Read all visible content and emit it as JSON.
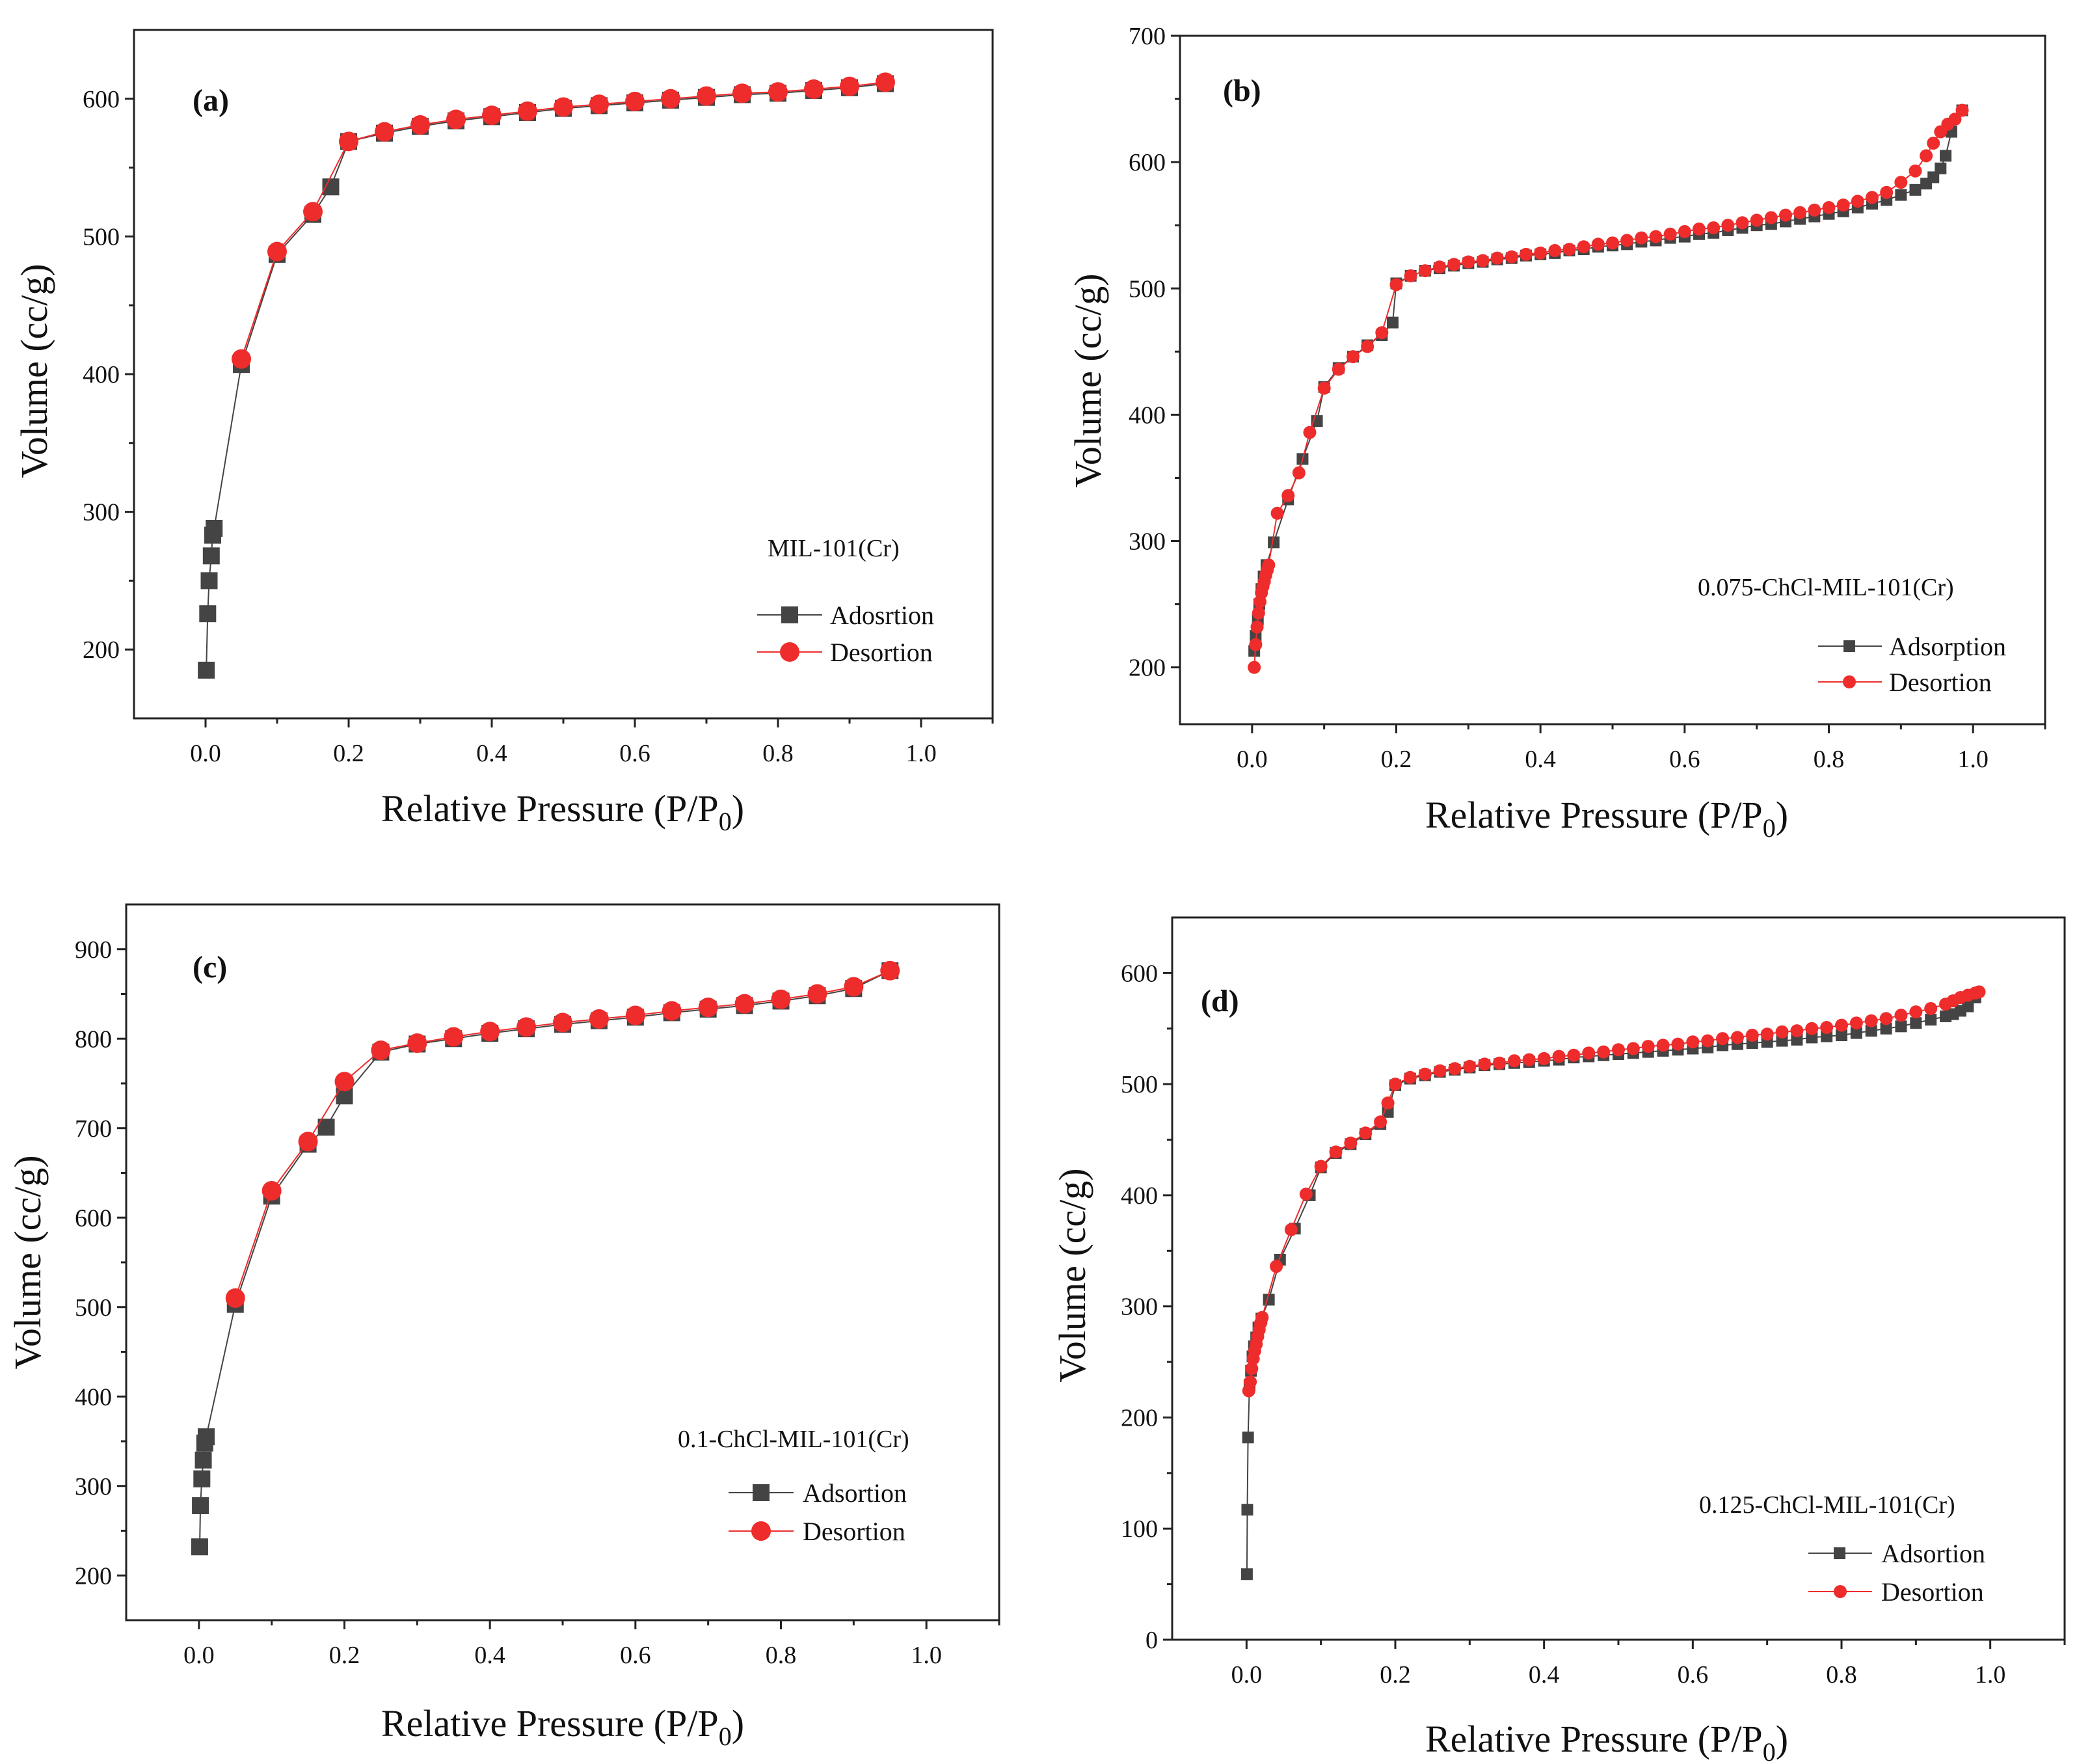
{
  "colors": {
    "adsorption": "#444444",
    "desorption": "#ee2c2c",
    "axis": "#222222"
  },
  "panels": [
    {
      "letter": "(a)",
      "sample": "MIL-101(Cr)",
      "xlabel": "Relative Pressure (P/P",
      "xlabel_sub": "0",
      "xlabel_end": ")",
      "ylabel": "Volume (cc/g)",
      "legend": {
        "adsorption": "Adosrtion",
        "desorption": "Desortion"
      }
    },
    {
      "letter": "(b)",
      "sample": "0.075-ChCl-MIL-101(Cr)",
      "xlabel": "Relative Pressure (P/P",
      "xlabel_sub": "0",
      "xlabel_end": ")",
      "ylabel": "Volume (cc/g)",
      "legend": {
        "adsorption": "Adsorption",
        "desorption": "Desortion"
      }
    },
    {
      "letter": "(c)",
      "sample": "0.1-ChCl-MIL-101(Cr)",
      "xlabel": "Relative Pressure (P/P",
      "xlabel_sub": "0",
      "xlabel_end": ")",
      "ylabel": "Volume (cc/g)",
      "legend": {
        "adsorption": "Adsortion",
        "desorption": "Desortion"
      }
    },
    {
      "letter": "(d)",
      "sample": "0.125-ChCl-MIL-101(Cr)",
      "xlabel": "Relative Pressure (P/P",
      "xlabel_sub": "0",
      "xlabel_end": ")",
      "ylabel": "Volume (cc/g)",
      "legend": {
        "adsorption": "Adsortion",
        "desorption": "Desortion"
      }
    }
  ],
  "chart_data": [
    {
      "type": "line",
      "title": "",
      "xlabel": "Relative Pressure (P/P0)",
      "ylabel": "Volume (cc/g)",
      "xlim": [
        -0.1,
        1.1
      ],
      "ylim": [
        150,
        650
      ],
      "xticks": [
        0.0,
        0.2,
        0.4,
        0.6,
        0.8,
        1.0
      ],
      "xtick_labels": [
        "0.0",
        "0.2",
        "0.4",
        "0.6",
        "0.8",
        "1.0"
      ],
      "yticks": [
        200,
        300,
        400,
        500,
        600
      ],
      "ytick_labels": [
        "200",
        "300",
        "400",
        "500",
        "600"
      ],
      "legend_placement": "right",
      "series": [
        {
          "name": "Adosrtion",
          "marker": "square",
          "x": [
            0.001,
            0.003,
            0.005,
            0.008,
            0.01,
            0.012,
            0.05,
            0.1,
            0.15,
            0.175,
            0.2,
            0.25,
            0.3,
            0.35,
            0.4,
            0.45,
            0.5,
            0.55,
            0.6,
            0.65,
            0.7,
            0.75,
            0.8,
            0.85,
            0.9,
            0.95
          ],
          "y": [
            185,
            226,
            250,
            268,
            283,
            288,
            407,
            487,
            516,
            536,
            569,
            575,
            580,
            584,
            587,
            590,
            593,
            595,
            597,
            599,
            601,
            603,
            604,
            606,
            608,
            611
          ]
        },
        {
          "name": "Desortion",
          "marker": "circle",
          "x": [
            0.05,
            0.1,
            0.15,
            0.2,
            0.25,
            0.3,
            0.35,
            0.4,
            0.45,
            0.5,
            0.55,
            0.6,
            0.65,
            0.7,
            0.75,
            0.8,
            0.85,
            0.9,
            0.95
          ],
          "y": [
            411,
            489,
            518,
            569,
            576,
            581,
            585,
            588,
            591,
            594,
            596,
            598,
            600,
            602,
            604,
            605,
            607,
            609,
            612
          ]
        }
      ]
    },
    {
      "type": "line",
      "title": "",
      "xlabel": "Relative Pressure (P/P0)",
      "ylabel": "Volume (cc/g)",
      "xlim": [
        -0.1,
        1.1
      ],
      "ylim": [
        155,
        700
      ],
      "xticks": [
        0.0,
        0.2,
        0.4,
        0.6,
        0.8,
        1.0
      ],
      "xtick_labels": [
        "0.0",
        "0.2",
        "0.4",
        "0.6",
        "0.8",
        "1.0"
      ],
      "yticks": [
        200,
        300,
        400,
        500,
        600,
        700
      ],
      "ytick_labels": [
        "200",
        "300",
        "400",
        "500",
        "600",
        "700"
      ],
      "legend_placement": "right",
      "series": [
        {
          "name": "Adsorption",
          "marker": "square",
          "x": [
            0.003,
            0.005,
            0.008,
            0.01,
            0.013,
            0.016,
            0.02,
            0.03,
            0.05,
            0.07,
            0.09,
            0.1,
            0.12,
            0.14,
            0.16,
            0.18,
            0.195,
            0.2,
            0.22,
            0.24,
            0.26,
            0.28,
            0.3,
            0.32,
            0.34,
            0.36,
            0.38,
            0.4,
            0.42,
            0.44,
            0.46,
            0.48,
            0.5,
            0.52,
            0.54,
            0.56,
            0.58,
            0.6,
            0.62,
            0.64,
            0.66,
            0.68,
            0.7,
            0.72,
            0.74,
            0.76,
            0.78,
            0.8,
            0.82,
            0.84,
            0.86,
            0.88,
            0.9,
            0.92,
            0.935,
            0.945,
            0.955,
            0.962,
            0.97,
            0.985
          ],
          "y": [
            213,
            225,
            238,
            250,
            262,
            272,
            281,
            299,
            333,
            365,
            395,
            422,
            437,
            446,
            455,
            463,
            473,
            504,
            510,
            514,
            516,
            518,
            520,
            521,
            523,
            524,
            526,
            527,
            528,
            530,
            531,
            533,
            534,
            535,
            537,
            538,
            540,
            541,
            543,
            544,
            546,
            548,
            550,
            551,
            553,
            555,
            557,
            559,
            561,
            564,
            567,
            570,
            574,
            578,
            583,
            588,
            595,
            605,
            624,
            641
          ]
        },
        {
          "name": "Desortion",
          "marker": "circle",
          "x": [
            0.003,
            0.005,
            0.007,
            0.009,
            0.011,
            0.013,
            0.015,
            0.017,
            0.019,
            0.021,
            0.023,
            0.035,
            0.05,
            0.065,
            0.08,
            0.1,
            0.12,
            0.14,
            0.16,
            0.18,
            0.2,
            0.22,
            0.24,
            0.26,
            0.28,
            0.3,
            0.32,
            0.34,
            0.36,
            0.38,
            0.4,
            0.42,
            0.44,
            0.46,
            0.48,
            0.5,
            0.52,
            0.54,
            0.56,
            0.58,
            0.6,
            0.62,
            0.64,
            0.66,
            0.68,
            0.7,
            0.72,
            0.74,
            0.76,
            0.78,
            0.8,
            0.82,
            0.84,
            0.86,
            0.88,
            0.9,
            0.92,
            0.935,
            0.945,
            0.955,
            0.965,
            0.975,
            0.985
          ],
          "y": [
            200,
            218,
            232,
            243,
            252,
            259,
            264,
            268,
            273,
            277,
            281,
            322,
            336,
            354,
            386,
            421,
            436,
            446,
            454,
            465,
            503,
            510,
            514,
            517,
            519,
            521,
            522,
            524,
            525,
            527,
            528,
            530,
            531,
            533,
            535,
            536,
            538,
            540,
            541,
            543,
            545,
            547,
            548,
            550,
            552,
            554,
            556,
            558,
            560,
            562,
            564,
            566,
            569,
            572,
            576,
            584,
            593,
            605,
            615,
            624,
            630,
            634,
            641
          ]
        }
      ]
    },
    {
      "type": "line",
      "title": "",
      "xlabel": "Relative Pressure (P/P0)",
      "ylabel": "Volume (cc/g)",
      "xlim": [
        -0.1,
        1.1
      ],
      "ylim": [
        150,
        950
      ],
      "xticks": [
        0.0,
        0.2,
        0.4,
        0.6,
        0.8,
        1.0
      ],
      "xtick_labels": [
        "0.0",
        "0.2",
        "0.4",
        "0.6",
        "0.8",
        "1.0"
      ],
      "yticks": [
        200,
        300,
        400,
        500,
        600,
        700,
        800,
        900
      ],
      "ytick_labels": [
        "200",
        "300",
        "400",
        "500",
        "600",
        "700",
        "800",
        "900"
      ],
      "legend_placement": "right",
      "series": [
        {
          "name": "Adsortion",
          "marker": "square",
          "x": [
            0.001,
            0.002,
            0.004,
            0.006,
            0.008,
            0.01,
            0.05,
            0.1,
            0.15,
            0.175,
            0.2,
            0.25,
            0.3,
            0.35,
            0.4,
            0.45,
            0.5,
            0.55,
            0.6,
            0.65,
            0.7,
            0.75,
            0.8,
            0.85,
            0.9,
            0.95
          ],
          "y": [
            232,
            278,
            308,
            329,
            348,
            355,
            503,
            624,
            682,
            701,
            736,
            785,
            794,
            800,
            806,
            811,
            816,
            820,
            824,
            829,
            833,
            837,
            842,
            848,
            856,
            876
          ]
        },
        {
          "name": "Desortion",
          "marker": "circle",
          "x": [
            0.05,
            0.1,
            0.15,
            0.2,
            0.25,
            0.3,
            0.35,
            0.4,
            0.45,
            0.5,
            0.55,
            0.6,
            0.65,
            0.7,
            0.75,
            0.8,
            0.85,
            0.9,
            0.95
          ],
          "y": [
            510,
            630,
            685,
            752,
            787,
            795,
            802,
            808,
            813,
            818,
            822,
            826,
            831,
            835,
            839,
            844,
            850,
            858,
            876
          ]
        }
      ]
    },
    {
      "type": "line",
      "title": "",
      "xlabel": "Relative Pressure (P/P0)",
      "ylabel": "Volume (cc/g)",
      "xlim": [
        -0.1,
        1.1
      ],
      "ylim": [
        0,
        650
      ],
      "xticks": [
        0.0,
        0.2,
        0.4,
        0.6,
        0.8,
        1.0
      ],
      "xtick_labels": [
        "0.0",
        "0.2",
        "0.4",
        "0.6",
        "0.8",
        "1.0"
      ],
      "yticks": [
        0,
        100,
        200,
        300,
        400,
        500,
        600
      ],
      "ytick_labels": [
        "0",
        "100",
        "200",
        "300",
        "400",
        "500",
        "600"
      ],
      "legend_placement": "right",
      "series": [
        {
          "name": "Adsortion",
          "marker": "square",
          "x": [
            0.0005,
            0.001,
            0.002,
            0.004,
            0.006,
            0.008,
            0.01,
            0.013,
            0.016,
            0.02,
            0.03,
            0.045,
            0.065,
            0.085,
            0.1,
            0.12,
            0.14,
            0.16,
            0.18,
            0.19,
            0.2,
            0.22,
            0.24,
            0.26,
            0.28,
            0.3,
            0.32,
            0.34,
            0.36,
            0.38,
            0.4,
            0.42,
            0.44,
            0.46,
            0.48,
            0.5,
            0.52,
            0.54,
            0.56,
            0.58,
            0.6,
            0.62,
            0.64,
            0.66,
            0.68,
            0.7,
            0.72,
            0.74,
            0.76,
            0.78,
            0.8,
            0.82,
            0.84,
            0.86,
            0.88,
            0.9,
            0.92,
            0.94,
            0.95,
            0.96,
            0.97,
            0.98
          ],
          "y": [
            59,
            117,
            182,
            229,
            242,
            255,
            264,
            272,
            281,
            289,
            306,
            342,
            370,
            400,
            425,
            438,
            446,
            455,
            464,
            475,
            499,
            505,
            508,
            511,
            513,
            515,
            517,
            518,
            519,
            520,
            521,
            522,
            524,
            525,
            526,
            527,
            528,
            529,
            530,
            531,
            532,
            533,
            535,
            536,
            537,
            538,
            539,
            540,
            542,
            543,
            544,
            546,
            548,
            550,
            552,
            555,
            558,
            561,
            563,
            566,
            570,
            578
          ]
        },
        {
          "name": "Desortion",
          "marker": "circle",
          "x": [
            0.003,
            0.005,
            0.007,
            0.009,
            0.011,
            0.013,
            0.015,
            0.017,
            0.019,
            0.021,
            0.04,
            0.06,
            0.08,
            0.1,
            0.12,
            0.14,
            0.16,
            0.18,
            0.19,
            0.2,
            0.22,
            0.24,
            0.26,
            0.28,
            0.3,
            0.32,
            0.34,
            0.36,
            0.38,
            0.4,
            0.42,
            0.44,
            0.46,
            0.48,
            0.5,
            0.52,
            0.54,
            0.56,
            0.58,
            0.6,
            0.62,
            0.64,
            0.66,
            0.68,
            0.7,
            0.72,
            0.74,
            0.76,
            0.78,
            0.8,
            0.82,
            0.84,
            0.86,
            0.88,
            0.9,
            0.92,
            0.94,
            0.95,
            0.96,
            0.97,
            0.98,
            0.985
          ],
          "y": [
            224,
            232,
            244,
            253,
            260,
            266,
            273,
            279,
            285,
            290,
            336,
            369,
            401,
            426,
            439,
            447,
            456,
            466,
            483,
            500,
            506,
            509,
            512,
            514,
            516,
            518,
            519,
            521,
            522,
            523,
            525,
            526,
            528,
            529,
            531,
            532,
            534,
            535,
            536,
            538,
            539,
            541,
            542,
            544,
            545,
            547,
            548,
            550,
            551,
            553,
            555,
            557,
            559,
            562,
            565,
            568,
            572,
            575,
            578,
            580,
            582,
            583
          ]
        }
      ]
    }
  ]
}
